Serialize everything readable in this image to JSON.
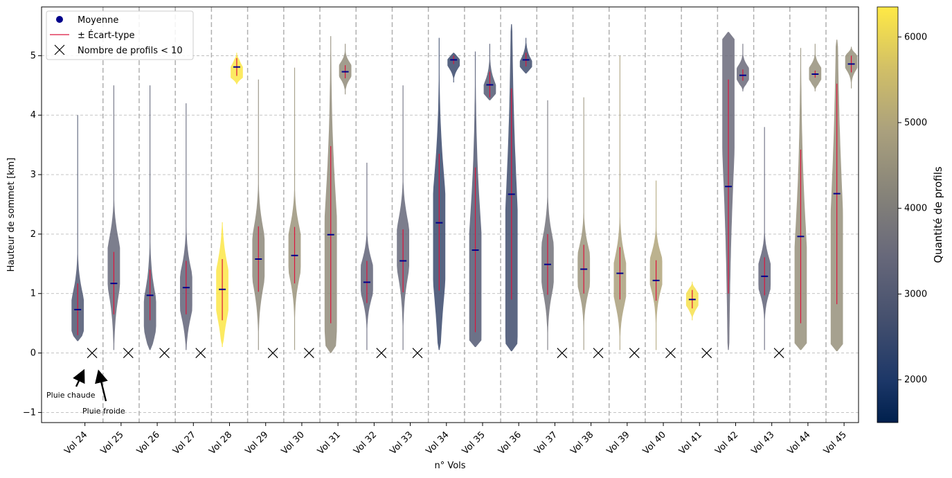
{
  "chart_data": {
    "type": "violin",
    "xlabel": "n° Vols",
    "ylabel": "Hauteur de sommet [km]",
    "ylim": [
      -1.17,
      5.82
    ],
    "yticks": [
      -1,
      0,
      1,
      2,
      3,
      4,
      5
    ],
    "grid": "horizontal dashed",
    "legend": {
      "placement": "top-left",
      "entries": [
        "Moyenne",
        "± Écart-type",
        "Nombre de profils < 10"
      ]
    },
    "colorbar": {
      "label": "Quantité de profils",
      "range": [
        1500,
        6350
      ],
      "ticks": [
        2000,
        3000,
        4000,
        5000,
        6000
      ],
      "colormap": "cividis"
    },
    "colors": {
      "mean": "#00008b",
      "std": "#dc143c",
      "grid": "#bbbbbb"
    },
    "annotations": [
      {
        "text": "Pluie chaude",
        "points_to": "Vol 24 warm-rain violin"
      },
      {
        "text": "Pluie froide",
        "points_to": "Vol 24 cold-rain marker"
      }
    ],
    "groups": [
      {
        "label": "Vol 24",
        "warm": {
          "mean": 0.73,
          "std_low": 0.3,
          "std_high": 1.17,
          "count": 2900,
          "ymin": 0.2,
          "ymax": 4.0,
          "mode": 0.6
        },
        "cold_lt10": true
      },
      {
        "label": "Vol 25",
        "warm": {
          "mean": 1.17,
          "std_low": 0.65,
          "std_high": 1.7,
          "count": 3400,
          "ymin": 0.05,
          "ymax": 4.5,
          "mode": 1.5
        },
        "cold_lt10": true
      },
      {
        "label": "Vol 26",
        "warm": {
          "mean": 0.97,
          "std_low": 0.55,
          "std_high": 1.4,
          "count": 3200,
          "ymin": 0.05,
          "ymax": 4.5,
          "mode": 0.6
        },
        "cold_lt10": true
      },
      {
        "label": "Vol 27",
        "warm": {
          "mean": 1.1,
          "std_low": 0.65,
          "std_high": 1.55,
          "count": 3300,
          "ymin": 0.05,
          "ymax": 4.2,
          "mode": 1.0
        },
        "cold_lt10": true
      },
      {
        "label": "Vol 28",
        "warm": {
          "mean": 1.07,
          "std_low": 0.55,
          "std_high": 1.58,
          "count": 6300,
          "ymin": 0.1,
          "ymax": 2.2,
          "mode": 1.05
        },
        "cold": {
          "mean": 4.81,
          "std_low": 4.66,
          "std_high": 4.96,
          "count": 6300,
          "ymin": 4.52,
          "ymax": 5.05,
          "mode": 4.7
        }
      },
      {
        "label": "Vol 29",
        "warm": {
          "mean": 1.58,
          "std_low": 1.03,
          "std_high": 2.13,
          "count": 4300,
          "ymin": 0.05,
          "ymax": 4.6,
          "mode": 1.6
        },
        "cold_lt10": true
      },
      {
        "label": "Vol 30",
        "warm": {
          "mean": 1.64,
          "std_low": 1.17,
          "std_high": 2.12,
          "count": 4600,
          "ymin": 0.05,
          "ymax": 4.8,
          "mode": 1.7
        },
        "cold_lt10": true
      },
      {
        "label": "Vol 31",
        "warm": {
          "mean": 1.99,
          "std_low": 0.5,
          "std_high": 3.48,
          "count": 4400,
          "ymin": 0.0,
          "ymax": 5.33,
          "mode": 1.2
        },
        "cold": {
          "mean": 4.73,
          "std_low": 4.62,
          "std_high": 4.84,
          "count": 4400,
          "ymin": 4.35,
          "ymax": 5.2,
          "mode": 4.75
        }
      },
      {
        "label": "Vol 32",
        "warm": {
          "mean": 1.19,
          "std_low": 0.84,
          "std_high": 1.55,
          "count": 3300,
          "ymin": 0.05,
          "ymax": 3.2,
          "mode": 1.25
        },
        "cold_lt10": true
      },
      {
        "label": "Vol 33",
        "warm": {
          "mean": 1.55,
          "std_low": 1.02,
          "std_high": 2.08,
          "count": 3400,
          "ymin": 0.05,
          "ymax": 4.5,
          "mode": 1.8
        },
        "cold_lt10": true
      },
      {
        "label": "Vol 34",
        "warm": {
          "mean": 2.19,
          "std_low": 1.05,
          "std_high": 3.35,
          "count": 2500,
          "ymin": 0.05,
          "ymax": 5.3,
          "mode": 1.9
        },
        "cold": {
          "mean": 4.93,
          "std_low": 4.86,
          "std_high": 5.0,
          "count": 2500,
          "ymin": 4.55,
          "ymax": 5.05,
          "mode": 4.93
        }
      },
      {
        "label": "Vol 35",
        "warm": {
          "mean": 1.73,
          "std_low": 0.35,
          "std_high": 3.12,
          "count": 3000,
          "ymin": 0.1,
          "ymax": 5.07,
          "mode": 1.0
        },
        "cold": {
          "mean": 4.51,
          "std_low": 4.3,
          "std_high": 4.73,
          "count": 3000,
          "ymin": 4.25,
          "ymax": 5.2,
          "mode": 4.35
        }
      },
      {
        "label": "Vol 36",
        "warm": {
          "mean": 2.67,
          "std_low": 0.9,
          "std_high": 4.45,
          "count": 2600,
          "ymin": 0.03,
          "ymax": 5.53,
          "mode": 1.1
        },
        "cold": {
          "mean": 4.93,
          "std_low": 4.82,
          "std_high": 5.05,
          "count": 2600,
          "ymin": 4.7,
          "ymax": 5.3,
          "mode": 4.8
        }
      },
      {
        "label": "Vol 37",
        "warm": {
          "mean": 1.49,
          "std_low": 0.98,
          "std_high": 2.0,
          "count": 3700,
          "ymin": 0.05,
          "ymax": 4.25,
          "mode": 1.5
        },
        "cold_lt10": true
      },
      {
        "label": "Vol 38",
        "warm": {
          "mean": 1.41,
          "std_low": 1.0,
          "std_high": 1.82,
          "count": 4600,
          "ymin": 0.05,
          "ymax": 4.3,
          "mode": 1.4
        },
        "cold_lt10": true
      },
      {
        "label": "Vol 39",
        "warm": {
          "mean": 1.34,
          "std_low": 0.9,
          "std_high": 1.78,
          "count": 4900,
          "ymin": 0.05,
          "ymax": 5.0,
          "mode": 1.2
        },
        "cold_lt10": true
      },
      {
        "label": "Vol 40",
        "warm": {
          "mean": 1.22,
          "std_low": 0.88,
          "std_high": 1.56,
          "count": 5000,
          "ymin": 0.05,
          "ymax": 2.9,
          "mode": 1.4
        },
        "cold_lt10": true
      },
      {
        "label": "Vol 41",
        "warm": {
          "mean": 0.9,
          "std_low": 0.75,
          "std_high": 1.06,
          "count": 6200,
          "ymin": 0.55,
          "ymax": 1.2,
          "mode": 0.9
        },
        "cold_lt10": true
      },
      {
        "label": "Vol 42",
        "warm": {
          "mean": 2.8,
          "std_low": 1.0,
          "std_high": 4.6,
          "count": 3500,
          "ymin": 0.05,
          "ymax": 5.4,
          "mode": 4.7
        },
        "cold": {
          "mean": 4.67,
          "std_low": 4.58,
          "std_high": 4.77,
          "count": 3500,
          "ymin": 4.4,
          "ymax": 5.2,
          "mode": 4.7
        }
      },
      {
        "label": "Vol 43",
        "warm": {
          "mean": 1.29,
          "std_low": 0.97,
          "std_high": 1.61,
          "count": 3300,
          "ymin": 0.05,
          "ymax": 3.8,
          "mode": 1.3
        },
        "cold_lt10": true
      },
      {
        "label": "Vol 44",
        "warm": {
          "mean": 1.96,
          "std_low": 0.5,
          "std_high": 3.42,
          "count": 4500,
          "ymin": 0.05,
          "ymax": 5.13,
          "mode": 0.7
        },
        "cold": {
          "mean": 4.69,
          "std_low": 4.63,
          "std_high": 4.75,
          "count": 4500,
          "ymin": 4.4,
          "ymax": 5.2,
          "mode": 4.7
        }
      },
      {
        "label": "Vol 45",
        "warm": {
          "mean": 2.68,
          "std_low": 0.82,
          "std_high": 4.53,
          "count": 4500,
          "ymin": 0.03,
          "ymax": 5.27,
          "mode": 1.0
        },
        "cold": {
          "mean": 4.86,
          "std_low": 4.72,
          "std_high": 5.0,
          "count": 4500,
          "ymin": 4.45,
          "ymax": 5.15,
          "mode": 4.9
        }
      }
    ]
  }
}
